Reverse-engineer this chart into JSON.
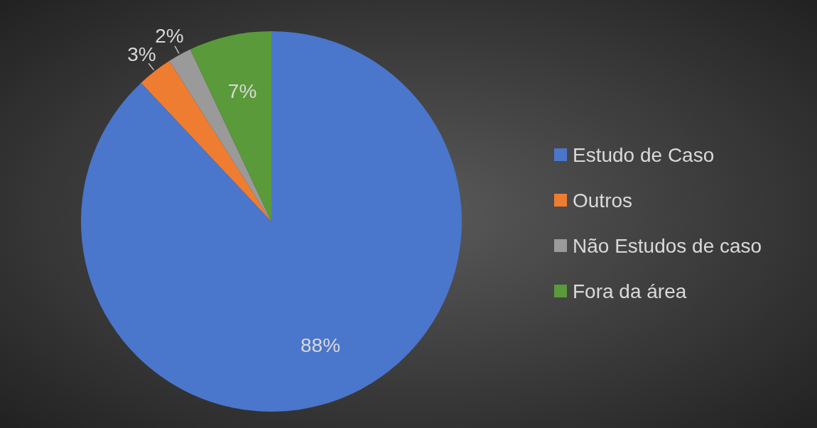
{
  "chart_data": {
    "type": "pie",
    "categories": [
      "Estudo de Caso",
      "Outros",
      "Não Estudos de caso",
      "Fora da área"
    ],
    "values": [
      88,
      3,
      2,
      7
    ],
    "colors": [
      "#4a76cc",
      "#ee7d31",
      "#9a9a9a",
      "#5a9a3a"
    ],
    "value_labels": [
      "88%",
      "3%",
      "2%",
      "7%"
    ],
    "legend": "right"
  }
}
